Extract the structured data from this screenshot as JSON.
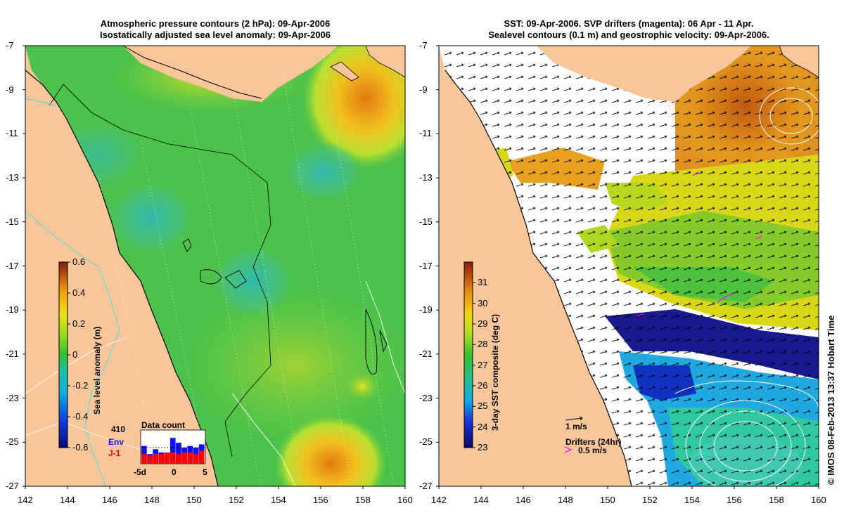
{
  "left_panel": {
    "title_line1": "Atmospheric pressure contours (2 hPa): 09-Apr-2006",
    "title_line2": "Isostatically adjusted sea level anomaly: 09-Apr-2006",
    "colorbar_label": "Sea level anomaly (m)",
    "colorbar_ticks": [
      "0.6",
      "0.4",
      "0.2",
      "0",
      "-0.2",
      "-0.4",
      "-0.6"
    ],
    "colorbar_range": [
      -0.6,
      0.6
    ],
    "data_count": {
      "title": "Data count",
      "max_label": "410",
      "env_label": "Env",
      "j1_label": "J-1",
      "x_ticks": [
        "-5d",
        "0",
        "5"
      ],
      "env_color": "#1010ff",
      "j1_color": "#ff0000",
      "env_values": [
        0.55,
        0.3,
        0.45,
        0.35,
        0.3,
        0.8,
        0.65,
        0.5,
        0.55,
        0.5,
        0.6
      ],
      "j1_values": [
        0.3,
        0.25,
        0.3,
        0.3,
        0.35,
        0.35,
        0.3,
        0.35,
        0.35,
        0.3,
        0.4
      ]
    }
  },
  "right_panel": {
    "title_line1": "SST: 09-Apr-2006. SVP drifters (magenta): 06 Apr - 11 Apr.",
    "title_line2": "Sealevel contours (0.1 m) and geostrophic velocity: 09-Apr-2006.",
    "colorbar_label": "3-day SST composite (deg C)",
    "colorbar_ticks": [
      "31",
      "30",
      "29",
      "28",
      "27",
      "26",
      "25",
      "24",
      "23"
    ],
    "colorbar_range": [
      23,
      32
    ],
    "scale_arrow_label": "1 m/s",
    "drifters_label": "Drifters (24hr)",
    "drifters_speed_label": "0.5 m/s",
    "drifter_color": "#ff00ff"
  },
  "axes": {
    "lat_ticks": [
      "-7",
      "-9",
      "-11",
      "-13",
      "-15",
      "-17",
      "-19",
      "-21",
      "-23",
      "-25",
      "-27"
    ],
    "lon_ticks": [
      "142",
      "144",
      "146",
      "148",
      "150",
      "152",
      "154",
      "156",
      "158",
      "160"
    ],
    "lon_range": [
      142,
      160
    ],
    "lat_range": [
      -27,
      -7
    ]
  },
  "colors": {
    "land": "#f9c69a",
    "ocean_green": "#4cc24a",
    "cloud_white": "#ffffff"
  },
  "credit": "© IMOS 08-Feb-2013 13:37 Hobart Time"
}
